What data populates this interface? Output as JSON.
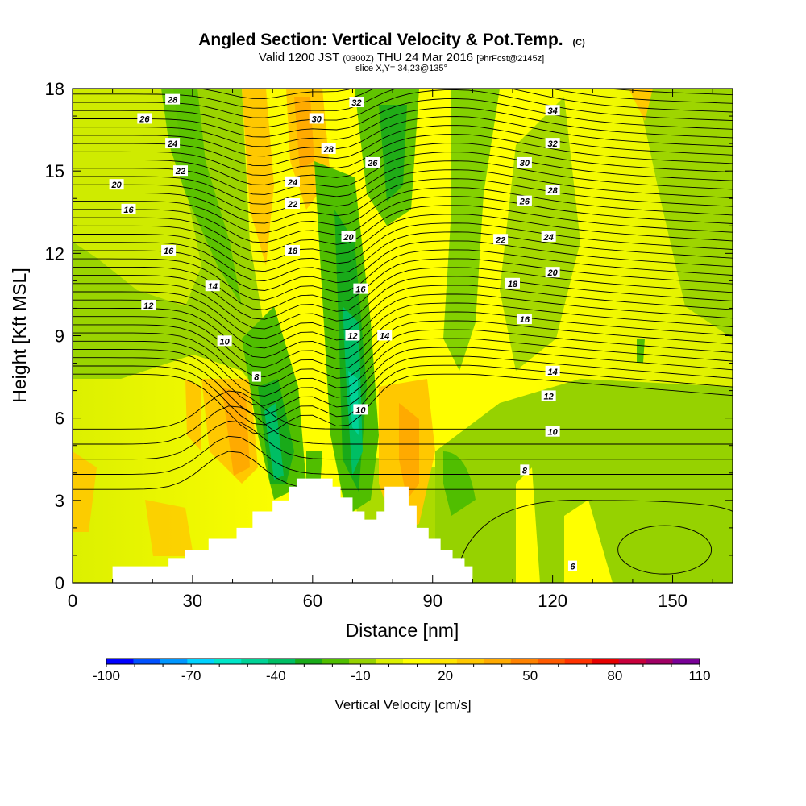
{
  "header": {
    "title_main": "Angled Section: Vertical Velocity & Pot.Temp.",
    "title_unit": "(C)",
    "valid_prefix": "Valid 1200 JST",
    "valid_z": "(0300Z)",
    "valid_date": "THU 24 Mar 2016",
    "valid_fcst": "[9hrFcst@2145z]",
    "slice": "slice X,Y= 34,23@135°"
  },
  "chart_data": {
    "type": "heatmap",
    "xlabel": "Distance [nm]",
    "ylabel": "Height [Kft MSL]",
    "xlim": [
      0,
      165
    ],
    "ylim": [
      0,
      18
    ],
    "x_ticks": [
      0,
      30,
      60,
      90,
      120,
      150
    ],
    "y_ticks": [
      0,
      3,
      6,
      9,
      12,
      15,
      18
    ],
    "colorbar": {
      "title": "Vertical Velocity [cm/s]",
      "min": -100,
      "max": 110,
      "step": 10,
      "labels": [
        "-100",
        "-70",
        "-40",
        "-10",
        "20",
        "50",
        "80",
        "110"
      ],
      "colors": [
        "#0000ff",
        "#0050ff",
        "#0096ff",
        "#00d2ff",
        "#00e6c8",
        "#00d296",
        "#00be64",
        "#19aa19",
        "#50be00",
        "#96d200",
        "#dcf000",
        "#ffff00",
        "#ffe600",
        "#ffc800",
        "#ffaa00",
        "#ff8200",
        "#ff5a00",
        "#ff3200",
        "#e60000",
        "#c8003c",
        "#a00064",
        "#780096"
      ]
    },
    "terrain": [
      [
        10,
        0.3
      ],
      [
        10,
        0.6
      ],
      [
        24,
        0.6
      ],
      [
        24,
        0.9
      ],
      [
        28,
        0.9
      ],
      [
        28,
        1.2
      ],
      [
        34,
        1.2
      ],
      [
        34,
        1.6
      ],
      [
        41,
        1.6
      ],
      [
        41,
        2.0
      ],
      [
        45,
        2.0
      ],
      [
        45,
        2.6
      ],
      [
        50,
        2.6
      ],
      [
        50,
        3.0
      ],
      [
        54,
        3.0
      ],
      [
        54,
        3.5
      ],
      [
        56,
        3.5
      ],
      [
        56,
        3.8
      ],
      [
        65,
        3.8
      ],
      [
        65,
        3.5
      ],
      [
        67,
        3.5
      ],
      [
        67,
        3.1
      ],
      [
        70,
        3.1
      ],
      [
        70,
        2.6
      ],
      [
        73,
        2.6
      ],
      [
        73,
        2.3
      ],
      [
        76,
        2.3
      ],
      [
        76,
        2.6
      ],
      [
        78,
        2.6
      ],
      [
        78,
        3.5
      ],
      [
        84,
        3.5
      ],
      [
        84,
        2.8
      ],
      [
        86,
        2.8
      ],
      [
        86,
        2.0
      ],
      [
        89,
        2.0
      ],
      [
        89,
        1.6
      ],
      [
        92,
        1.6
      ],
      [
        92,
        1.2
      ],
      [
        95,
        1.2
      ],
      [
        95,
        0.9
      ],
      [
        98,
        0.9
      ],
      [
        98,
        0.6
      ],
      [
        100,
        0.6
      ],
      [
        100,
        0.3
      ]
    ],
    "contours": [
      {
        "label": "6",
        "at": [
          125,
          0.6
        ]
      },
      {
        "label": "8",
        "at": [
          46,
          7.5
        ]
      },
      {
        "label": "8",
        "at": [
          113,
          4.1
        ]
      },
      {
        "label": "10",
        "at": [
          38,
          8.8
        ]
      },
      {
        "label": "10",
        "at": [
          72,
          6.3
        ]
      },
      {
        "label": "10",
        "at": [
          120,
          5.5
        ]
      },
      {
        "label": "12",
        "at": [
          19,
          10.1
        ]
      },
      {
        "label": "12",
        "at": [
          70,
          9.0
        ]
      },
      {
        "label": "12",
        "at": [
          119,
          6.8
        ]
      },
      {
        "label": "14",
        "at": [
          35,
          10.8
        ]
      },
      {
        "label": "14",
        "at": [
          78,
          9.0
        ]
      },
      {
        "label": "14",
        "at": [
          120,
          7.7
        ]
      },
      {
        "label": "16",
        "at": [
          24,
          12.1
        ]
      },
      {
        "label": "16",
        "at": [
          72,
          10.7
        ]
      },
      {
        "label": "16",
        "at": [
          113,
          9.6
        ]
      },
      {
        "label": "16",
        "at": [
          14,
          13.6
        ]
      },
      {
        "label": "18",
        "at": [
          55,
          12.1
        ]
      },
      {
        "label": "18",
        "at": [
          110,
          10.9
        ]
      },
      {
        "label": "20",
        "at": [
          11,
          14.5
        ]
      },
      {
        "label": "20",
        "at": [
          69,
          12.6
        ]
      },
      {
        "label": "20",
        "at": [
          120,
          11.3
        ]
      },
      {
        "label": "22",
        "at": [
          27,
          15.0
        ]
      },
      {
        "label": "22",
        "at": [
          55,
          13.8
        ]
      },
      {
        "label": "22",
        "at": [
          107,
          12.5
        ]
      },
      {
        "label": "24",
        "at": [
          25,
          16.0
        ]
      },
      {
        "label": "24",
        "at": [
          55,
          14.6
        ]
      },
      {
        "label": "24",
        "at": [
          119,
          12.6
        ]
      },
      {
        "label": "26",
        "at": [
          18,
          16.9
        ]
      },
      {
        "label": "26",
        "at": [
          75,
          15.3
        ]
      },
      {
        "label": "26",
        "at": [
          113,
          13.9
        ]
      },
      {
        "label": "28",
        "at": [
          25,
          17.6
        ]
      },
      {
        "label": "28",
        "at": [
          64,
          15.8
        ]
      },
      {
        "label": "28",
        "at": [
          120,
          14.3
        ]
      },
      {
        "label": "30",
        "at": [
          61,
          16.9
        ]
      },
      {
        "label": "30",
        "at": [
          113,
          15.3
        ]
      },
      {
        "label": "32",
        "at": [
          71,
          17.5
        ]
      },
      {
        "label": "32",
        "at": [
          120,
          16.0
        ]
      },
      {
        "label": "34",
        "at": [
          120,
          17.2
        ]
      }
    ]
  }
}
